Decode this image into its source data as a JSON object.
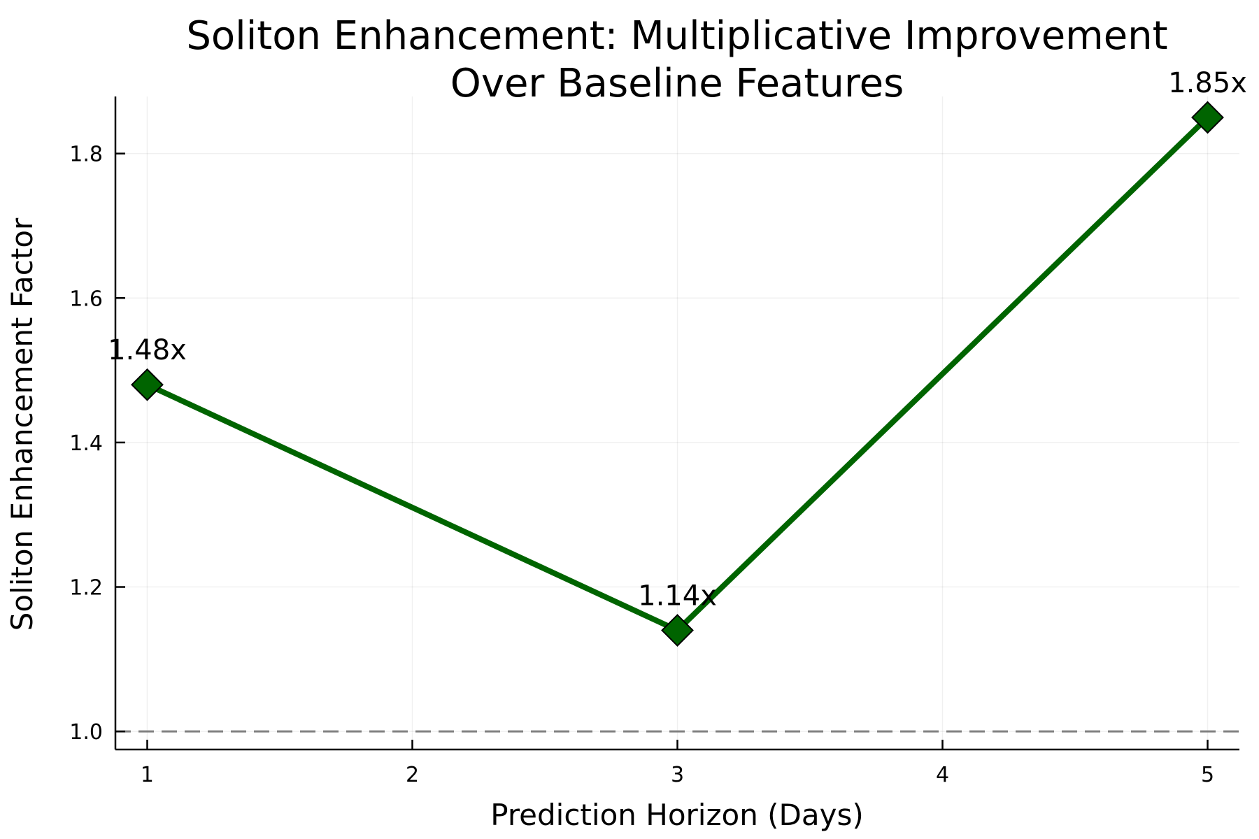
{
  "chart_data": {
    "type": "line",
    "title_lines": [
      "Soliton Enhancement: Multiplicative Improvement",
      "Over Baseline Features"
    ],
    "xlabel": "Prediction Horizon (Days)",
    "ylabel": "Soliton Enhancement Factor",
    "x": [
      1,
      3,
      5
    ],
    "series": [
      {
        "values": [
          1.48,
          1.14,
          1.85
        ],
        "labels": [
          "1.48x",
          "1.14x",
          "1.85x"
        ],
        "color": "#006400",
        "marker": "diamond"
      }
    ],
    "x_ticks": [
      1,
      2,
      3,
      4,
      5
    ],
    "x_tick_labels": [
      "1",
      "2",
      "3",
      "4",
      "5"
    ],
    "y_ticks": [
      1.0,
      1.2,
      1.4,
      1.6,
      1.8
    ],
    "y_tick_labels": [
      "1.0",
      "1.2",
      "1.4",
      "1.6",
      "1.8"
    ],
    "xlim": [
      0.88,
      5.12
    ],
    "ylim": [
      0.975,
      1.879
    ],
    "reference_line": {
      "y": 1.0,
      "style": "dashed",
      "color": "#808080"
    },
    "grid": true,
    "legend": "none"
  }
}
